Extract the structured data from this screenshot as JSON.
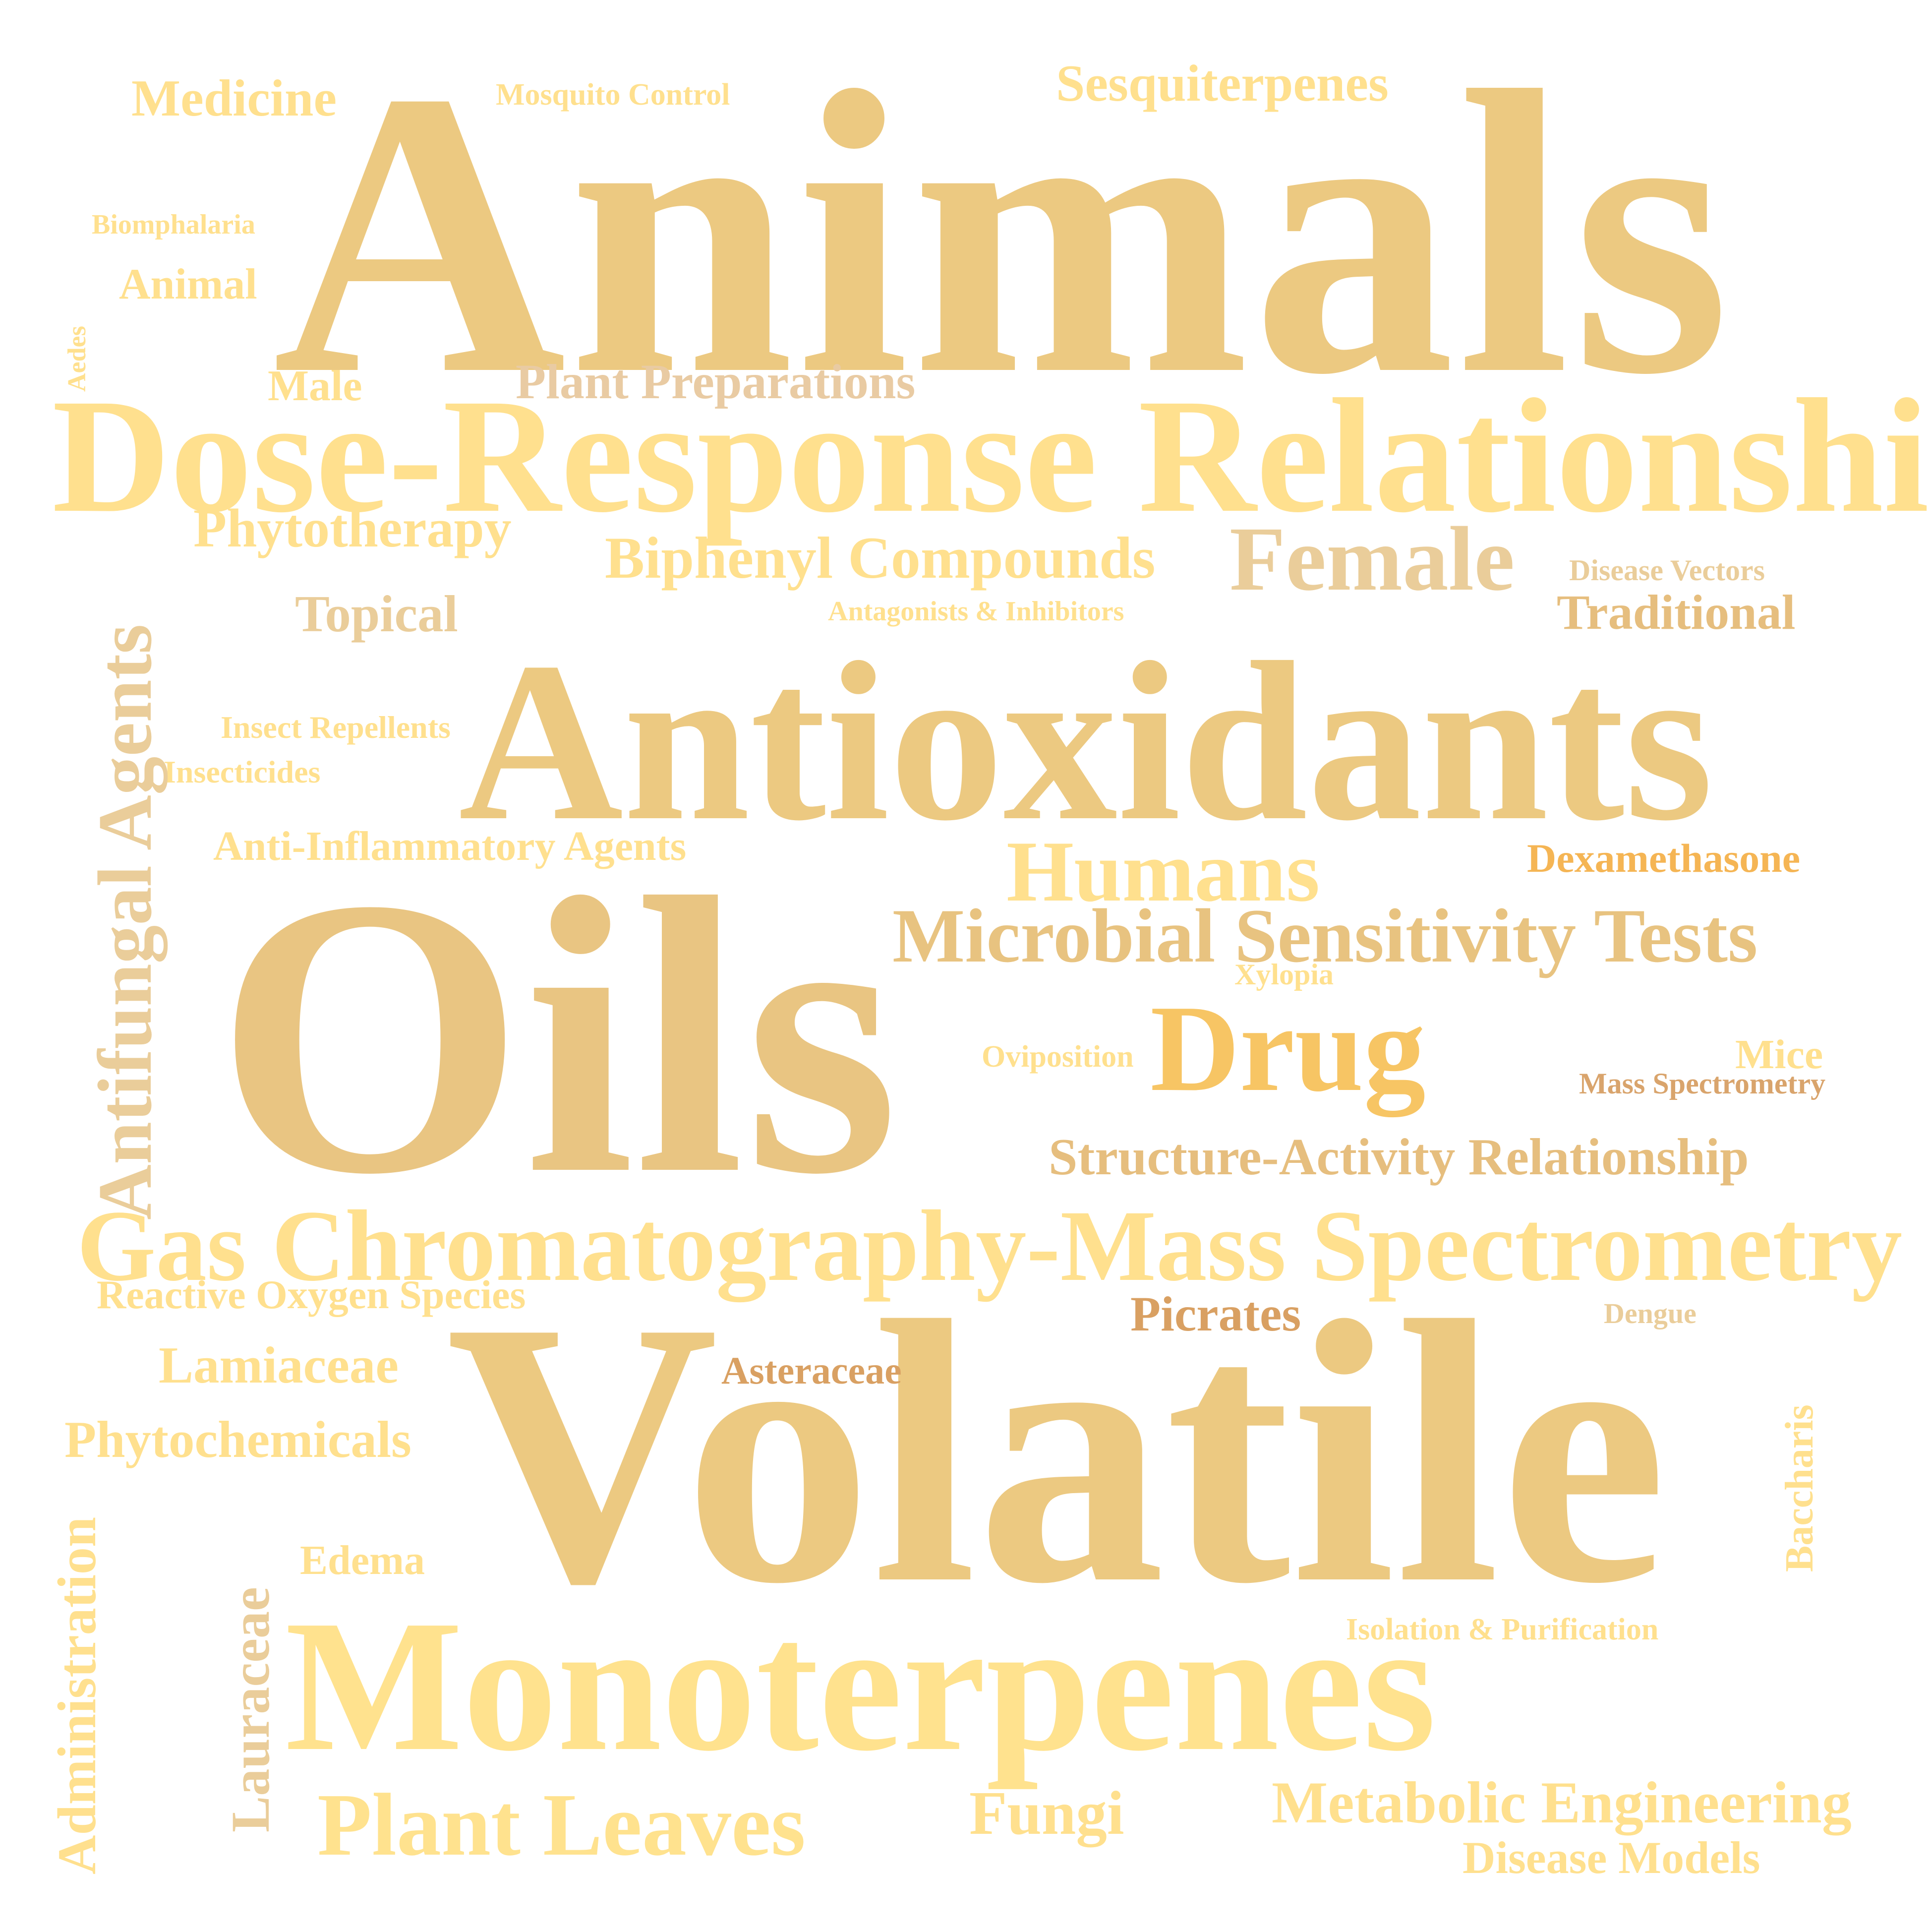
{
  "word_cloud": {
    "words": [
      {
        "key": "animals",
        "text": "Animals",
        "color": "#ECC981"
      },
      {
        "key": "dose",
        "text": "Dose-Response Relationship",
        "color": "#FFE08E"
      },
      {
        "key": "antiox",
        "text": "Antioxidants",
        "color": "#ECC981"
      },
      {
        "key": "oils",
        "text": "Oils",
        "color": "#E9C582"
      },
      {
        "key": "gas",
        "text": "Gas Chromatography-Mass Spectrometry",
        "color": "#FFE08E"
      },
      {
        "key": "volatile",
        "text": "Volatile",
        "color": "#ECC981"
      },
      {
        "key": "mono",
        "text": "Monoterpenes",
        "color": "#FFE28E"
      },
      {
        "key": "plantlv",
        "text": "Plant Leaves",
        "color": "#FFE28E"
      },
      {
        "key": "female",
        "text": "Female",
        "color": "#EACD9A"
      },
      {
        "key": "humans",
        "text": "Humans",
        "color": "#FFE08E"
      },
      {
        "key": "microbial",
        "text": "Microbial Sensitivity Tests",
        "color": "#E8C380"
      },
      {
        "key": "drug",
        "text": "Drug",
        "color": "#F7C564"
      },
      {
        "key": "structure",
        "text": "Structure-Activity Relationship",
        "color": "#E6BE7E"
      },
      {
        "key": "biphenyl",
        "text": "Biphenyl Compounds",
        "color": "#FFE08E"
      },
      {
        "key": "plantprep",
        "text": "Plant Preparations",
        "color": "#E9CBA3"
      },
      {
        "key": "sesqui",
        "text": "Sesquiterpenes",
        "color": "#FFE08E"
      },
      {
        "key": "medicine",
        "text": "Medicine",
        "color": "#FFE08E"
      },
      {
        "key": "mosquito",
        "text": "Mosquito Control",
        "color": "#FFE08E"
      },
      {
        "key": "biomph",
        "text": "Biomphalaria",
        "color": "#FFE08E"
      },
      {
        "key": "animal",
        "text": "Animal",
        "color": "#FFE08E"
      },
      {
        "key": "male",
        "text": "Male",
        "color": "#FFE08E"
      },
      {
        "key": "phyto",
        "text": "Phytotherapy",
        "color": "#FFE08E"
      },
      {
        "key": "topical",
        "text": "Topical",
        "color": "#EACD9A"
      },
      {
        "key": "antag",
        "text": "Antagonists & Inhibitors",
        "color": "#FFE08E"
      },
      {
        "key": "disvec",
        "text": "Disease Vectors",
        "color": "#EACD9A"
      },
      {
        "key": "trad",
        "text": "Traditional",
        "color": "#E6BE7E"
      },
      {
        "key": "insrep",
        "text": "Insect Repellents",
        "color": "#FFE08E"
      },
      {
        "key": "insect",
        "text": "Insecticides",
        "color": "#FFE08E"
      },
      {
        "key": "antiinf",
        "text": "Anti-Inflammatory Agents",
        "color": "#FFE08E"
      },
      {
        "key": "dexa",
        "text": "Dexamethasone",
        "color": "#F5B554"
      },
      {
        "key": "xylopia",
        "text": "Xylopia",
        "color": "#FFE08E"
      },
      {
        "key": "ovipo",
        "text": "Oviposition",
        "color": "#FFE08E"
      },
      {
        "key": "mice",
        "text": "Mice",
        "color": "#FFE08E"
      },
      {
        "key": "massspec",
        "text": "Mass Spectrometry",
        "color": "#D9A46C"
      },
      {
        "key": "reactive",
        "text": "Reactive Oxygen Species",
        "color": "#FFE08E"
      },
      {
        "key": "picrates",
        "text": "Picrates",
        "color": "#D9A062"
      },
      {
        "key": "dengue",
        "text": "Dengue",
        "color": "#EACD9A"
      },
      {
        "key": "lamia",
        "text": "Lamiaceae",
        "color": "#FFE08E"
      },
      {
        "key": "astera",
        "text": "Asteraceae",
        "color": "#D9A062"
      },
      {
        "key": "phytochem",
        "text": "Phytochemicals",
        "color": "#FFE08E"
      },
      {
        "key": "edema",
        "text": "Edema",
        "color": "#FFE08E"
      },
      {
        "key": "isolation",
        "text": "Isolation & Purification",
        "color": "#FFE08E"
      },
      {
        "key": "fungi",
        "text": "Fungi",
        "color": "#FFE08E"
      },
      {
        "key": "metab",
        "text": "Metabolic Engineering",
        "color": "#FFE08E"
      },
      {
        "key": "disease",
        "text": "Disease Models",
        "color": "#FFE08E"
      },
      {
        "key": "aedes",
        "text": "Aedes",
        "color": "#FFE08E"
      },
      {
        "key": "antifung",
        "text": "Antifungal Agents",
        "color": "#EACD9A"
      },
      {
        "key": "lauraceae",
        "text": "Lauraceae",
        "color": "#EACD9A"
      },
      {
        "key": "admin",
        "text": "Administration",
        "color": "#FFE08E"
      },
      {
        "key": "bacch",
        "text": "Baccharis",
        "color": "#FFE08E"
      }
    ]
  }
}
